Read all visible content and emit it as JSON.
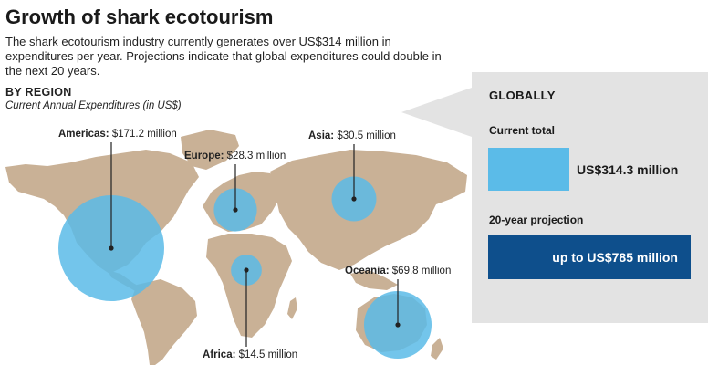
{
  "title": "Growth of shark ecotourism",
  "subtitle": "The shark ecotourism industry currently generates over US$314 million in expenditures per year. Projections indicate that global expenditures could double in the next 20 years.",
  "region_heading": "BY REGION",
  "region_subheading": "Current Annual Expenditures (in US$)",
  "chart_data": {
    "type": "bubble-map",
    "unit": "US$ million",
    "regions": [
      {
        "name": "Americas",
        "label": "Americas:",
        "value_text": "$171.2 million",
        "value": 171.2
      },
      {
        "name": "Europe",
        "label": "Europe:",
        "value_text": "$28.3 million",
        "value": 28.3
      },
      {
        "name": "Asia",
        "label": "Asia:",
        "value_text": "$30.5 million",
        "value": 30.5
      },
      {
        "name": "Africa",
        "label": "Africa:",
        "value_text": "$14.5 million",
        "value": 14.5
      },
      {
        "name": "Oceania",
        "label": "Oceania:",
        "value_text": "$69.8 million",
        "value": 69.8
      }
    ],
    "global": {
      "heading": "GLOBALLY",
      "current_label": "Current total",
      "current_value_text": "US$314.3 million",
      "current_value": 314.3,
      "projection_label": "20-year projection",
      "projection_value_text": "up to US$785 million",
      "projection_value": 785
    }
  },
  "colors": {
    "land": "#c9b196",
    "bubble": "#5bbbe8",
    "projection": "#0e4f8c",
    "panel": "#e3e3e3"
  }
}
